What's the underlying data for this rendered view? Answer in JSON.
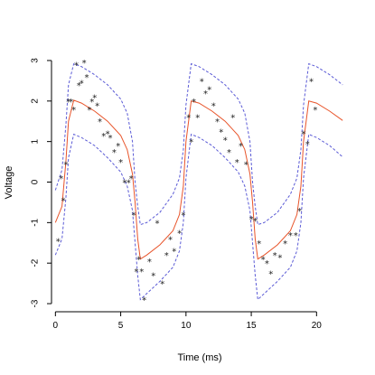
{
  "chart_data": {
    "type": "line",
    "title": "",
    "xlabel": "Time (ms)",
    "ylabel": "Voltage",
    "xlim": [
      -0.3,
      22.4
    ],
    "ylim": [
      -3.2,
      3.2
    ],
    "x_ticks": [
      0,
      5,
      10,
      15,
      20
    ],
    "y_ticks": [
      -3,
      -2,
      -1,
      0,
      1,
      2,
      3
    ],
    "grid": false,
    "legend": "none",
    "series": [
      {
        "style": "line",
        "color": "#e8542a",
        "x": [
          0,
          0.5,
          0.8,
          1.0,
          1.4,
          2.0,
          3.0,
          4.0,
          5.0,
          5.5,
          5.9,
          6.1,
          6.3,
          6.5,
          7.0,
          8.0,
          9.0,
          9.5,
          9.8,
          10.0,
          10.4,
          11.0,
          12.0,
          13.0,
          14.0,
          14.5,
          14.9,
          15.1,
          15.3,
          15.5,
          16.0,
          17.0,
          18.0,
          18.5,
          18.8,
          19.0,
          19.4,
          20.0,
          21.0,
          22.0
        ],
        "y": [
          -1.0,
          -0.6,
          0.5,
          1.5,
          2.02,
          1.95,
          1.75,
          1.5,
          1.15,
          0.8,
          0.2,
          -0.5,
          -1.4,
          -1.9,
          -1.8,
          -1.55,
          -1.2,
          -0.8,
          -0.1,
          1.0,
          2.0,
          1.95,
          1.75,
          1.5,
          1.15,
          0.8,
          0.2,
          -0.5,
          -1.4,
          -1.9,
          -1.8,
          -1.55,
          -1.2,
          -0.8,
          -0.1,
          1.0,
          2.0,
          1.95,
          1.75,
          1.52
        ]
      },
      {
        "style": "dashed",
        "color": "#5b5bd6",
        "x": [
          0,
          0.5,
          0.8,
          1.0,
          1.4,
          2.0,
          3.0,
          4.0,
          5.0,
          5.5,
          5.9,
          6.1,
          6.3,
          6.5,
          7.0,
          8.0,
          9.0,
          9.5,
          9.8,
          10.0,
          10.4,
          11.0,
          12.0,
          13.0,
          14.0,
          14.5,
          14.9,
          15.1,
          15.3,
          15.5,
          16.0,
          17.0,
          18.0,
          18.5,
          18.8,
          19.0,
          19.4,
          20.0,
          21.0,
          22.0
        ],
        "y": [
          -0.2,
          0.3,
          1.4,
          2.4,
          2.92,
          2.85,
          2.65,
          2.4,
          2.05,
          1.7,
          1.0,
          0.0,
          -0.6,
          -1.05,
          -1.0,
          -0.75,
          -0.3,
          0.1,
          0.8,
          1.9,
          2.92,
          2.85,
          2.65,
          2.4,
          2.05,
          1.7,
          1.0,
          0.0,
          -0.6,
          -1.05,
          -1.0,
          -0.75,
          -0.3,
          0.1,
          0.8,
          1.9,
          2.92,
          2.85,
          2.65,
          2.4
        ]
      },
      {
        "style": "dashed",
        "color": "#5b5bd6",
        "x": [
          0,
          0.5,
          0.8,
          1.0,
          1.4,
          2.0,
          3.0,
          4.0,
          5.0,
          5.5,
          5.9,
          6.1,
          6.3,
          6.5,
          7.0,
          8.0,
          9.0,
          9.5,
          9.8,
          10.0,
          10.4,
          11.0,
          12.0,
          13.0,
          14.0,
          14.5,
          14.9,
          15.1,
          15.3,
          15.5,
          16.0,
          17.0,
          18.0,
          18.5,
          18.8,
          19.0,
          19.4,
          20.0,
          21.0,
          22.0
        ],
        "y": [
          -1.8,
          -1.4,
          -0.4,
          0.6,
          1.18,
          1.1,
          0.9,
          0.6,
          0.25,
          -0.1,
          -0.7,
          -1.5,
          -2.3,
          -2.9,
          -2.75,
          -2.45,
          -2.1,
          -1.7,
          -1.0,
          0.1,
          1.18,
          1.1,
          0.9,
          0.6,
          0.25,
          -0.1,
          -0.7,
          -1.5,
          -2.3,
          -2.9,
          -2.75,
          -2.45,
          -2.1,
          -1.7,
          -1.0,
          0.1,
          1.18,
          1.1,
          0.9,
          0.62
        ]
      },
      {
        "style": "points",
        "marker": "*",
        "color": "#222222",
        "x": [
          0.2,
          0.45,
          0.6,
          0.8,
          1.0,
          1.2,
          1.4,
          1.6,
          1.8,
          2.0,
          2.2,
          2.4,
          2.6,
          2.8,
          3.0,
          3.2,
          3.4,
          3.7,
          4.0,
          4.2,
          4.5,
          4.8,
          5.0,
          5.3,
          5.6,
          5.8,
          6.0,
          6.2,
          6.4,
          6.6,
          6.8,
          7.2,
          7.5,
          7.8,
          8.2,
          8.5,
          8.8,
          9.1,
          9.5,
          9.8,
          10.2,
          10.4,
          10.6,
          10.9,
          11.2,
          11.5,
          11.8,
          12.1,
          12.4,
          12.7,
          13.0,
          13.3,
          13.6,
          13.9,
          14.2,
          14.6,
          15.0,
          15.3,
          15.6,
          15.9,
          16.2,
          16.5,
          16.8,
          17.2,
          17.6,
          18.0,
          18.4,
          18.7,
          19.0,
          19.3,
          19.6,
          19.9
        ],
        "y": [
          -1.45,
          0.1,
          -0.45,
          0.45,
          2.0,
          2.0,
          1.8,
          2.9,
          2.4,
          2.45,
          2.95,
          2.6,
          1.8,
          2.0,
          2.1,
          1.9,
          1.5,
          1.15,
          1.2,
          1.1,
          0.75,
          0.9,
          0.5,
          0.0,
          0.0,
          0.1,
          -0.8,
          -2.2,
          -1.9,
          -2.2,
          -2.9,
          -1.95,
          -2.3,
          -1.0,
          -2.5,
          -1.8,
          -1.4,
          -1.7,
          -1.25,
          -0.8,
          1.6,
          1.0,
          2.0,
          1.6,
          2.5,
          2.2,
          2.3,
          1.9,
          1.5,
          1.25,
          1.05,
          0.75,
          1.6,
          0.5,
          0.9,
          0.45,
          -0.9,
          -0.95,
          -1.5,
          -1.9,
          -2.0,
          -2.25,
          -1.8,
          -1.85,
          -1.5,
          -1.3,
          -1.3,
          -0.7,
          1.2,
          0.95,
          2.5,
          1.8
        ]
      }
    ]
  }
}
